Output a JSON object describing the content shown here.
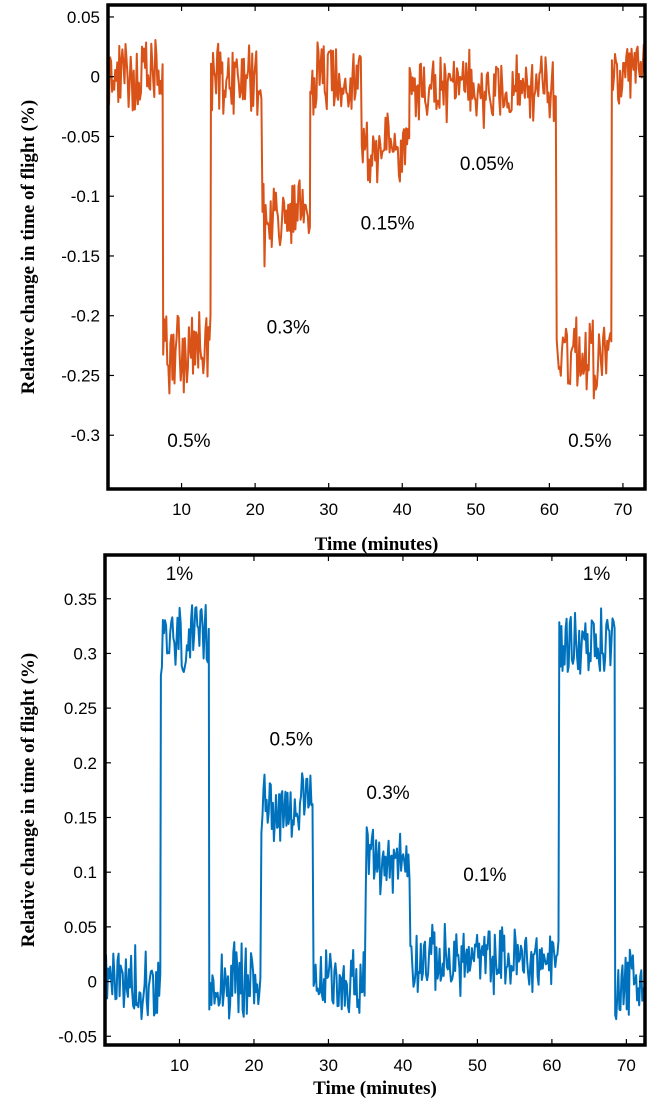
{
  "colors": {
    "series_top": "#D95319",
    "series_bottom": "#0072BD",
    "frame": "#000000"
  },
  "chart_data": [
    {
      "type": "line",
      "xlabel": "Time (minutes)",
      "ylabel": "Relative change in time of flight (%)",
      "xlim": [
        0,
        73
      ],
      "ylim": [
        -0.345,
        0.06
      ],
      "xticks": [
        "10",
        "20",
        "30",
        "40",
        "50",
        "60",
        "70"
      ],
      "yticks": [
        "0.05",
        "0",
        "-0.05",
        "-0.1",
        "-0.15",
        "-0.2",
        "-0.25",
        "-0.3"
      ],
      "grid": false,
      "legend": "none",
      "color": "#D95319",
      "segments": [
        {
          "x": [
            0,
            7.5
          ],
          "y": 0,
          "noise": 0.025
        },
        {
          "x": [
            7.5,
            14
          ],
          "y": -0.23,
          "noise": 0.03
        },
        {
          "x": [
            14,
            21
          ],
          "y": 0,
          "noise": 0.028
        },
        {
          "x": [
            21,
            27.5
          ],
          "y": -0.12,
          "noise": 0.03
        },
        {
          "x": [
            27.5,
            34.5
          ],
          "y": 0,
          "noise": 0.025
        },
        {
          "x": [
            34.5,
            41
          ],
          "y": -0.06,
          "noise": 0.025
        },
        {
          "x": [
            41,
            61
          ],
          "y": -0.01,
          "noise": 0.025
        },
        {
          "x": [
            61,
            68.5
          ],
          "y": -0.23,
          "noise": 0.03
        },
        {
          "x": [
            68.5,
            73
          ],
          "y": 0,
          "noise": 0.025
        }
      ],
      "annotations": [
        {
          "text": "0.5%",
          "x": 11,
          "y": -0.31
        },
        {
          "text": "0.3%",
          "x": 24.5,
          "y": -0.215
        },
        {
          "text": "0.15%",
          "x": 38,
          "y": -0.128
        },
        {
          "text": "0.05%",
          "x": 51.5,
          "y": -0.078
        },
        {
          "text": "0.5%",
          "x": 65.5,
          "y": -0.31
        }
      ]
    },
    {
      "type": "line",
      "xlabel": "Time (minutes)",
      "ylabel": "Relative change in time of flight (%)",
      "xlim": [
        0,
        72.5
      ],
      "ylim": [
        -0.058,
        0.39
      ],
      "xticks": [
        "10",
        "20",
        "30",
        "40",
        "50",
        "60",
        "70"
      ],
      "yticks": [
        "0.35",
        "0.3",
        "0.25",
        "0.2",
        "0.15",
        "0.1",
        "0.05",
        "0",
        "-0.05"
      ],
      "grid": false,
      "legend": "none",
      "color": "#0072BD",
      "segments": [
        {
          "x": [
            0,
            7.5
          ],
          "y": 0,
          "noise": 0.028
        },
        {
          "x": [
            7.5,
            14
          ],
          "y": 0.31,
          "noise": 0.028
        },
        {
          "x": [
            14,
            21
          ],
          "y": 0,
          "noise": 0.028
        },
        {
          "x": [
            21,
            28
          ],
          "y": 0.16,
          "noise": 0.025
        },
        {
          "x": [
            28,
            35
          ],
          "y": 0,
          "noise": 0.025
        },
        {
          "x": [
            35,
            41
          ],
          "y": 0.11,
          "noise": 0.025
        },
        {
          "x": [
            41,
            61
          ],
          "y": 0.02,
          "noise": 0.025
        },
        {
          "x": [
            61,
            68.5
          ],
          "y": 0.31,
          "noise": 0.028
        },
        {
          "x": [
            68.5,
            72.5
          ],
          "y": 0,
          "noise": 0.028
        }
      ],
      "annotations": [
        {
          "text": "1%",
          "x": 10,
          "y": 0.367
        },
        {
          "text": "0.5%",
          "x": 25,
          "y": 0.216
        },
        {
          "text": "0.3%",
          "x": 38,
          "y": 0.167
        },
        {
          "text": "0.1%",
          "x": 51,
          "y": 0.092
        },
        {
          "text": "1%",
          "x": 66,
          "y": 0.367
        }
      ]
    }
  ]
}
